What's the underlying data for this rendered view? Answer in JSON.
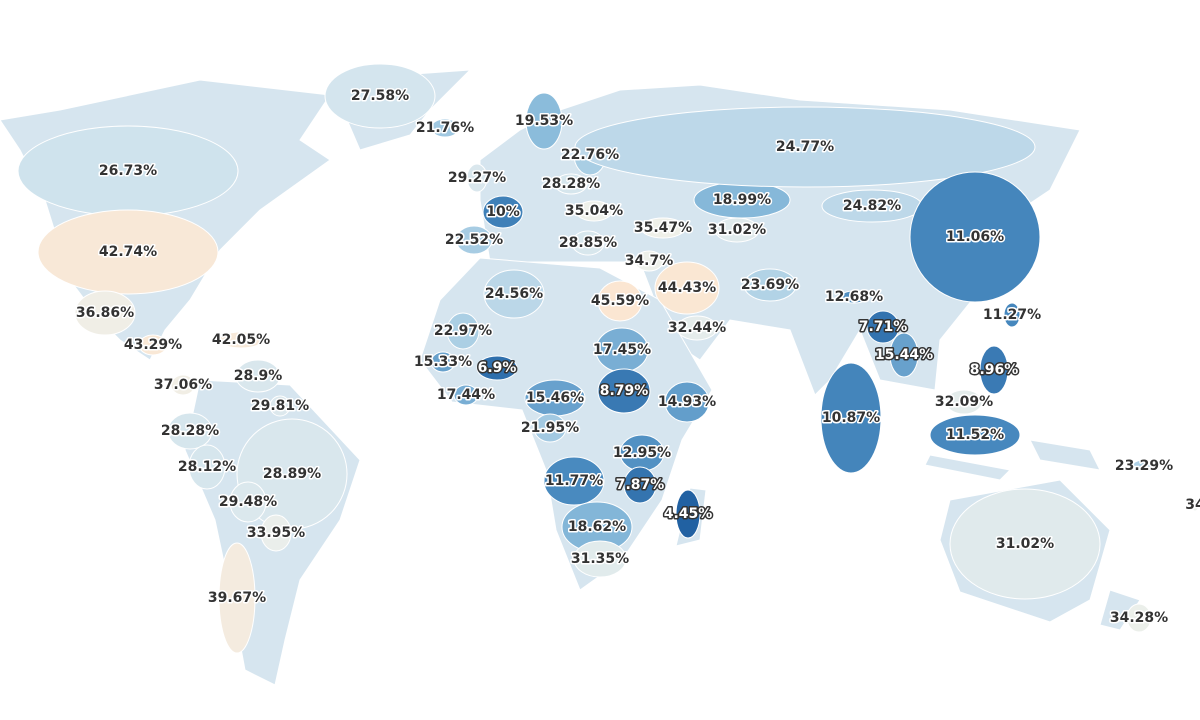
{
  "chart_data": {
    "type": "choropleth",
    "values": [
      27.58,
      21.76,
      26.73,
      42.74,
      36.86,
      43.29,
      42.05,
      37.06,
      28.9,
      29.81,
      28.28,
      28.12,
      28.89,
      29.48,
      33.95,
      39.67,
      19.53,
      22.76,
      29.27,
      28.28,
      10,
      35.04,
      22.52,
      28.85,
      35.47,
      31.02,
      18.99,
      24.77,
      24.82,
      11.06,
      34.7,
      44.43,
      23.69,
      12.68,
      24.56,
      45.59,
      32.44,
      22.97,
      17.45,
      7.71,
      11.27,
      15.33,
      6.9,
      15.44,
      8.96,
      17.44,
      15.46,
      8.79,
      14.93,
      10.87,
      32.09,
      21.95,
      11.52,
      12.95,
      23.29,
      11.77,
      7.87,
      4.45,
      34,
      18.62,
      31.02,
      31.35,
      34.28
    ],
    "value_labels": [
      "27.58%",
      "21.76%",
      "26.73%",
      "42.74%",
      "36.86%",
      "43.29%",
      "42.05%",
      "37.06%",
      "28.9%",
      "29.81%",
      "28.28%",
      "28.12%",
      "28.89%",
      "29.48%",
      "33.95%",
      "39.67%",
      "19.53%",
      "22.76%",
      "29.27%",
      "28.28%",
      "10%",
      "35.04%",
      "22.52%",
      "28.85%",
      "35.47%",
      "31.02%",
      "18.99%",
      "24.77%",
      "24.82%",
      "11.06%",
      "34.7%",
      "44.43%",
      "23.69%",
      "12.68%",
      "24.56%",
      "45.59%",
      "32.44%",
      "22.97%",
      "17.45%",
      "7.71%",
      "11.27%",
      "15.33%",
      "6.9%",
      "15.44%",
      "8.96%",
      "17.44%",
      "15.46%",
      "8.79%",
      "14.93%",
      "10.87%",
      "32.09%",
      "21.95%",
      "11.52%",
      "12.95%",
      "23.29%",
      "11.77%",
      "7.87%",
      "4.45%",
      "34",
      "18.62%",
      "31.02%",
      "31.35%",
      "34.28%"
    ]
  }
}
